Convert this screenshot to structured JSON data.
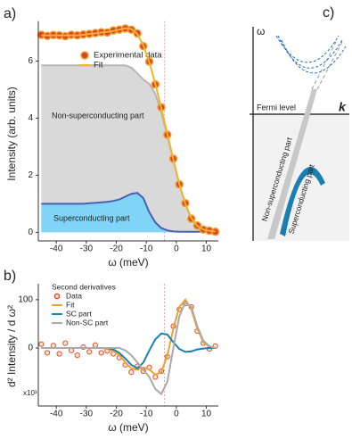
{
  "chart_data": [
    {
      "type": "line",
      "panel_label": "a)",
      "y_label": "Intensity (arb. units)",
      "x_label": "ω (meV)",
      "xlim": [
        -46,
        14
      ],
      "xticks": [
        -40,
        -30,
        -20,
        -10,
        0,
        10
      ],
      "ylim": [
        -0.3,
        7.4
      ],
      "yticks": [
        0,
        2,
        4,
        6
      ],
      "vline": -4,
      "x": [
        -45,
        -43,
        -41,
        -39,
        -37,
        -35,
        -33,
        -31,
        -29,
        -27,
        -25,
        -23,
        -21,
        -19,
        -17,
        -15,
        -13,
        -11,
        -9,
        -7,
        -5,
        -3,
        -1,
        1,
        3,
        5,
        7,
        9,
        11,
        13
      ],
      "series": [
        {
          "name": "Non-superconducting part",
          "kind": "area",
          "color": "#d9d9d9",
          "line_color": "#b5b5b5",
          "values": [
            5.85,
            5.85,
            5.85,
            5.85,
            5.85,
            5.85,
            5.85,
            5.85,
            5.85,
            5.85,
            5.85,
            5.85,
            5.85,
            5.85,
            5.85,
            5.77,
            5.57,
            5.35,
            5.2,
            4.85,
            4.2,
            3.38,
            2.52,
            1.68,
            0.98,
            0.48,
            0.2,
            0.08,
            0.03,
            0.01
          ]
        },
        {
          "name": "Superconducting part",
          "kind": "area",
          "color": "#80d4f6",
          "line_color": "#4a5fb0",
          "values": [
            1.0,
            1.0,
            1.0,
            1.0,
            1.0,
            1.0,
            1.0,
            1.0,
            1.02,
            1.03,
            1.05,
            1.07,
            1.1,
            1.15,
            1.25,
            1.35,
            1.38,
            1.2,
            0.7,
            0.35,
            0.15,
            0.07,
            0.03,
            0.02,
            0.02,
            0.02,
            0.02,
            0.02,
            0.02,
            0.02
          ]
        },
        {
          "name": "Experimental data",
          "kind": "scatter",
          "color": "#d9442b",
          "line_color": "#f0a030",
          "values": [
            6.92,
            6.88,
            6.91,
            6.9,
            6.87,
            6.92,
            6.9,
            6.93,
            6.95,
            6.98,
            7.01,
            7.0,
            7.07,
            7.1,
            7.14,
            7.1,
            6.97,
            6.52,
            5.98,
            5.18,
            4.38,
            3.42,
            2.58,
            1.68,
            1.02,
            0.48,
            0.24,
            0.1,
            0.06,
            0.02
          ]
        },
        {
          "name": "Fit",
          "kind": "line",
          "color": "#f5b32b",
          "values": [
            6.9,
            6.9,
            6.9,
            6.9,
            6.9,
            6.9,
            6.9,
            6.92,
            6.95,
            6.97,
            7.0,
            7.02,
            7.05,
            7.1,
            7.15,
            7.12,
            6.95,
            6.55,
            5.95,
            5.2,
            4.35,
            3.45,
            2.55,
            1.7,
            1.0,
            0.5,
            0.22,
            0.1,
            0.05,
            0.03
          ]
        }
      ]
    },
    {
      "type": "line",
      "panel_label": "b)",
      "y_label": "d² Intensity / d ω²",
      "x_label": "ω (meV)",
      "y_scale_label": "x10³",
      "legend_title": "Second derivatives",
      "xlim": [
        -46,
        14
      ],
      "xticks": [
        -40,
        -30,
        -20,
        -10,
        0,
        10
      ],
      "ylim": [
        -120,
        133
      ],
      "yticks": [
        0,
        100
      ],
      "vline": -4,
      "x": [
        -45,
        -43,
        -41,
        -39,
        -37,
        -35,
        -33,
        -31,
        -29,
        -27,
        -25,
        -23,
        -21,
        -19,
        -17,
        -15,
        -13,
        -11,
        -9,
        -7,
        -5,
        -3,
        -1,
        1,
        3,
        5,
        7,
        9,
        11,
        13
      ],
      "series": [
        {
          "name": "Data",
          "kind": "scatter",
          "color": "#fbe3d8",
          "line_color": "#d9532b",
          "values": [
            8,
            -10,
            5,
            -12,
            10,
            -5,
            -15,
            2,
            -8,
            6,
            -10,
            -6,
            -12,
            -20,
            -35,
            -50,
            -38,
            -48,
            -40,
            -60,
            -48,
            -18,
            45,
            80,
            92,
            85,
            35,
            10,
            -2,
            4
          ]
        },
        {
          "name": "Fit",
          "kind": "line",
          "color": "#f0a030",
          "values": [
            0,
            0,
            0,
            0,
            0,
            0,
            0,
            0,
            0,
            0,
            0,
            -2,
            -6,
            -15,
            -30,
            -42,
            -45,
            -40,
            -45,
            -55,
            -50,
            -15,
            40,
            85,
            100,
            80,
            40,
            12,
            3,
            0
          ]
        },
        {
          "name": "SC part",
          "kind": "line",
          "color": "#1a7fb0",
          "values": [
            0,
            0,
            0,
            0,
            0,
            0,
            0,
            0,
            0,
            0,
            0,
            0,
            -3,
            -10,
            -22,
            -35,
            -42,
            -30,
            -5,
            18,
            30,
            28,
            12,
            -2,
            -8,
            -7,
            -3,
            -1,
            0,
            0
          ]
        },
        {
          "name": "Non-SC part",
          "kind": "line",
          "color": "#aaaaaa",
          "values": [
            0,
            0,
            0,
            0,
            0,
            0,
            0,
            0,
            0,
            0,
            0,
            0,
            0,
            0,
            -5,
            -15,
            -30,
            -45,
            -60,
            -85,
            -95,
            -70,
            0,
            65,
            95,
            85,
            45,
            15,
            4,
            0
          ]
        }
      ]
    }
  ],
  "diagram": {
    "panel_label": "c)",
    "y_axis": "ω",
    "x_axis": "k",
    "fermi_level": "Fermi level",
    "nonsc_label": "Non-superconducting part",
    "sc_label": "Superconducting part"
  }
}
